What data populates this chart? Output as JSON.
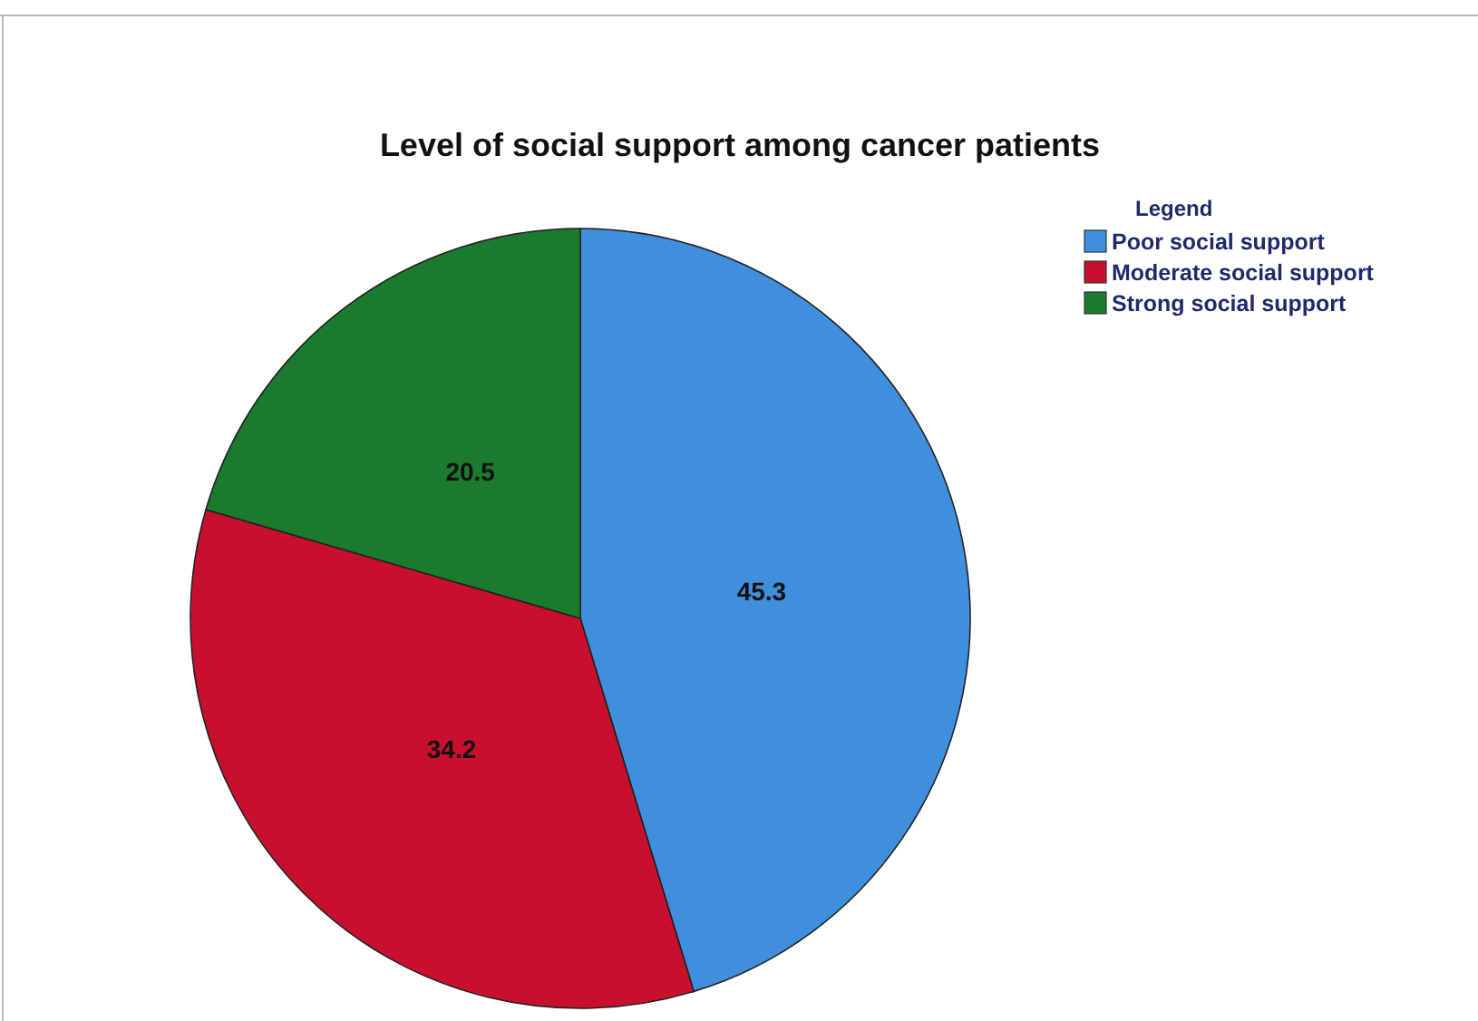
{
  "chart_data": {
    "type": "pie",
    "title": "Level of social support among cancer patients",
    "legend_title": "Legend",
    "categories": [
      "Poor social support",
      "Moderate social support",
      "Strong social support"
    ],
    "values": [
      45.3,
      34.2,
      20.5
    ],
    "colors": [
      "#3f8fdc",
      "#c8102e",
      "#1a7a2e"
    ],
    "data_labels": true,
    "legend": "top right"
  }
}
